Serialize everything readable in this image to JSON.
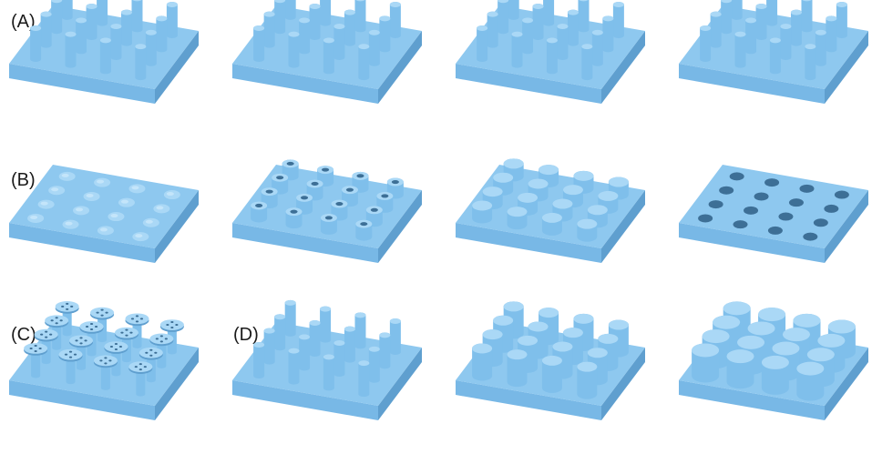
{
  "labels": {
    "a": "(A)",
    "b": "(B)",
    "c": "(C)",
    "d": "(D)"
  },
  "colors": {
    "top": "#8ec8ef",
    "left": "#78b8e6",
    "right": "#5f9fcf",
    "pillar_side": "#7fbfeb",
    "pillar_top": "#aad8f6",
    "hole": "#3d6f96"
  },
  "panels": [
    {
      "row": "A",
      "variant": "pillars-slim"
    },
    {
      "row": "A",
      "variant": "pillars-slim"
    },
    {
      "row": "A",
      "variant": "pillars-slim"
    },
    {
      "row": "A",
      "variant": "pillars-slim"
    },
    {
      "row": "B",
      "variant": "domes"
    },
    {
      "row": "B",
      "variant": "hollow-pillars"
    },
    {
      "row": "B",
      "variant": "short-pillars"
    },
    {
      "row": "B",
      "variant": "holes"
    },
    {
      "row": "C",
      "variant": "mushroom-pillars"
    },
    {
      "row": "D",
      "variant": "pillars-slim"
    },
    {
      "row": "D",
      "variant": "pillars-medium"
    },
    {
      "row": "D",
      "variant": "pillars-wide"
    }
  ]
}
